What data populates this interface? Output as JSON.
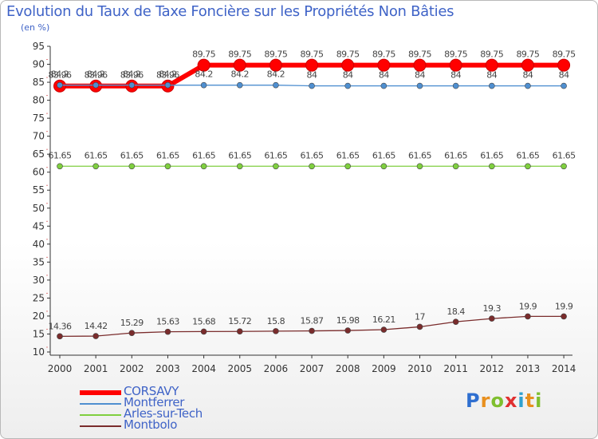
{
  "chart_data": {
    "type": "line",
    "title": "Evolution du Taux de Taxe Foncière sur les Propriétés Non Bâties",
    "ylabel": "(en %)",
    "xlabel": "",
    "ylim": [
      10,
      95
    ],
    "yticks": [
      10,
      15,
      20,
      25,
      30,
      35,
      40,
      45,
      50,
      55,
      60,
      65,
      70,
      75,
      80,
      85,
      90,
      95
    ],
    "grid": false,
    "categories": [
      "2000",
      "2001",
      "2002",
      "2003",
      "2004",
      "2005",
      "2006",
      "2007",
      "2008",
      "2009",
      "2010",
      "2011",
      "2012",
      "2013",
      "2014"
    ],
    "series": [
      {
        "name": "CORSAVY",
        "color": "#ff0000",
        "values": [
          83.96,
          83.96,
          83.96,
          83.96,
          89.75,
          89.75,
          89.75,
          89.75,
          89.75,
          89.75,
          89.75,
          89.75,
          89.75,
          89.75,
          89.75
        ],
        "labels": [
          "83.96",
          "83.96",
          "83.96",
          "83.96",
          "89.75",
          "89.75",
          "89.75",
          "89.75",
          "89.75",
          "89.75",
          "89.75",
          "89.75",
          "89.75",
          "89.75",
          "89.75"
        ]
      },
      {
        "name": "Montferrer",
        "color": "#4f8fd0",
        "values": [
          84.2,
          84.2,
          84.2,
          84.2,
          84.2,
          84.2,
          84.2,
          84,
          84,
          84,
          84,
          84,
          84,
          84,
          84
        ],
        "labels": [
          "84.2",
          "84.2",
          "84.2",
          "84.2",
          "84.2",
          "84.2",
          "84.2",
          "84",
          "84",
          "84",
          "84",
          "84",
          "84",
          "84",
          "84"
        ]
      },
      {
        "name": "Arles-sur-Tech",
        "color": "#7fcf3f",
        "values": [
          61.65,
          61.65,
          61.65,
          61.65,
          61.65,
          61.65,
          61.65,
          61.65,
          61.65,
          61.65,
          61.65,
          61.65,
          61.65,
          61.65,
          61.65
        ],
        "labels": [
          "61.65",
          "61.65",
          "61.65",
          "61.65",
          "61.65",
          "61.65",
          "61.65",
          "61.65",
          "61.65",
          "61.65",
          "61.65",
          "61.65",
          "61.65",
          "61.65",
          "61.65"
        ]
      },
      {
        "name": "Montbolo",
        "color": "#7a2c2c",
        "values": [
          14.36,
          14.42,
          15.29,
          15.63,
          15.68,
          15.72,
          15.8,
          15.87,
          15.98,
          16.21,
          17,
          18.4,
          19.3,
          19.9,
          19.9
        ],
        "labels": [
          "14.36",
          "14.42",
          "15.29",
          "15.63",
          "15.68",
          "15.72",
          "15.8",
          "15.87",
          "15.98",
          "16.21",
          "17",
          "18.4",
          "19.3",
          "19.9",
          "19.9"
        ]
      }
    ]
  },
  "logo": {
    "letters": [
      "P",
      "r",
      "o",
      "x",
      "i",
      "t",
      "i"
    ],
    "colors": [
      "#2f6fd0",
      "#e8901f",
      "#7fbf2f",
      "#e03030",
      "#2fa0d0",
      "#e8901f",
      "#7fbf2f"
    ]
  }
}
